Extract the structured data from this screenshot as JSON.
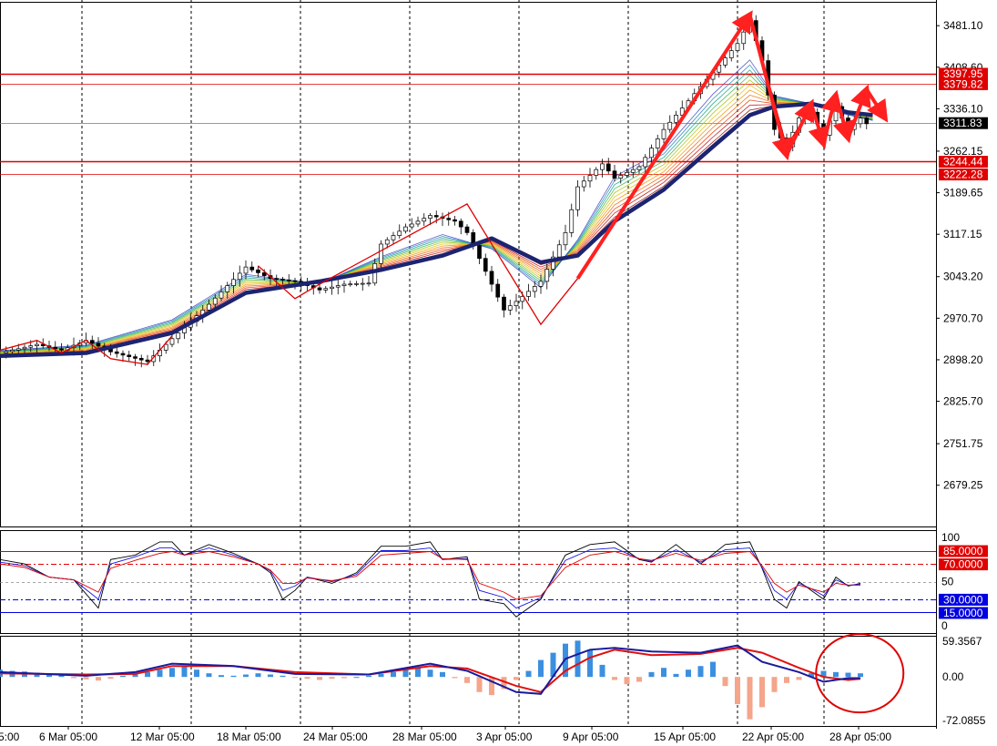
{
  "chart_data": {
    "type": "line",
    "instrument_note": "",
    "x_ticks": [
      "6 Mar 05:00",
      "12 Mar 05:00",
      "18 Mar 05:00",
      "24 Mar 05:00",
      "28 Mar 05:00",
      "3 Apr 05:00",
      "9 Apr 05:00",
      "15 Apr 05:00",
      "22 Apr 05:00",
      "28 Apr 05:00"
    ],
    "x_cut_label": "5:00",
    "main": {
      "ylim": [
        2620,
        3510
      ],
      "y_ticks": [
        3481.1,
        3408.6,
        3336.1,
        3262.15,
        3189.65,
        3117.15,
        3043.2,
        2970.7,
        2898.2,
        2825.7,
        2751.75,
        2679.25
      ],
      "y_tick_labels": [
        "3481.10",
        "3408.60",
        "3336.10",
        "3262.15",
        "3189.65",
        "3117.15",
        "3043.20",
        "2970.70",
        "2898.20",
        "2825.70",
        "2751.75",
        "2679.25"
      ],
      "levels": [
        {
          "value": 3397.95,
          "label": "3397.95",
          "color": "#e00000"
        },
        {
          "value": 3379.82,
          "label": "3379.82",
          "color": "#e00000"
        },
        {
          "value": 3244.44,
          "label": "3244.44",
          "color": "#e00000"
        },
        {
          "value": 3222.28,
          "label": "3222.28",
          "color": "#e00000"
        }
      ],
      "current": {
        "value": 3311.83,
        "label": "3311.83"
      },
      "price_path": [
        [
          0,
          2910
        ],
        [
          3,
          2925
        ],
        [
          5,
          2915
        ],
        [
          7,
          2932
        ],
        [
          9,
          2912
        ],
        [
          12,
          2895
        ],
        [
          14,
          2935
        ],
        [
          17,
          2995
        ],
        [
          20,
          3060
        ],
        [
          22,
          3040
        ],
        [
          24,
          3035
        ],
        [
          26,
          3020
        ],
        [
          28,
          3030
        ],
        [
          30,
          3032
        ],
        [
          31,
          3100
        ],
        [
          33,
          3130
        ],
        [
          35,
          3150
        ],
        [
          37,
          3140
        ],
        [
          38,
          3120
        ],
        [
          41,
          2985
        ],
        [
          42,
          3000
        ],
        [
          44,
          3035
        ],
        [
          46,
          3120
        ],
        [
          47,
          3200
        ],
        [
          49,
          3240
        ],
        [
          50,
          3215
        ],
        [
          52,
          3235
        ],
        [
          54,
          3300
        ],
        [
          56,
          3350
        ],
        [
          58,
          3400
        ],
        [
          60,
          3450
        ],
        [
          61,
          3490
        ],
        [
          62,
          3420
        ],
        [
          63,
          3300
        ],
        [
          64,
          3270
        ],
        [
          65,
          3320
        ],
        [
          66,
          3330
        ],
        [
          67,
          3290
        ],
        [
          68,
          3340
        ],
        [
          69,
          3300
        ],
        [
          70,
          3320
        ],
        [
          71,
          3300
        ]
      ],
      "ma_slow": [
        [
          0,
          2905
        ],
        [
          7,
          2910
        ],
        [
          14,
          2945
        ],
        [
          20,
          3015
        ],
        [
          26,
          3035
        ],
        [
          31,
          3055
        ],
        [
          36,
          3080
        ],
        [
          40,
          3110
        ],
        [
          44,
          3068
        ],
        [
          47,
          3080
        ],
        [
          50,
          3140
        ],
        [
          54,
          3195
        ],
        [
          58,
          3270
        ],
        [
          61,
          3325
        ],
        [
          63,
          3340
        ],
        [
          66,
          3345
        ],
        [
          69,
          3330
        ],
        [
          71,
          3325
        ]
      ],
      "ma_fast": [
        [
          0,
          2915
        ],
        [
          7,
          2925
        ],
        [
          14,
          2970
        ],
        [
          20,
          3050
        ],
        [
          26,
          3030
        ],
        [
          31,
          3080
        ],
        [
          36,
          3120
        ],
        [
          40,
          3090
        ],
        [
          44,
          3020
        ],
        [
          47,
          3110
        ],
        [
          50,
          3225
        ],
        [
          54,
          3270
        ],
        [
          58,
          3370
        ],
        [
          61,
          3430
        ],
        [
          63,
          3360
        ],
        [
          66,
          3345
        ],
        [
          69,
          3325
        ],
        [
          71,
          3315
        ]
      ],
      "trend_lines": [
        [
          [
            0,
            2915
          ],
          [
            3,
            2932
          ],
          [
            5,
            2910
          ],
          [
            7,
            2932
          ],
          [
            9,
            2900
          ],
          [
            12,
            2890
          ],
          [
            14,
            2940
          ]
        ],
        [
          [
            21,
            3062
          ],
          [
            24,
            3005
          ],
          [
            26,
            3030
          ],
          [
            38,
            3170
          ],
          [
            44,
            2960
          ],
          [
            47,
            3040
          ]
        ],
        [
          [
            47,
            3040
          ],
          [
            61,
            3500
          ],
          [
            64,
            3270
          ],
          [
            66,
            3340
          ],
          [
            67,
            3270
          ],
          [
            68,
            3360
          ],
          [
            69,
            3285
          ]
        ]
      ],
      "arrows": [
        {
          "from": [
            47,
            3040
          ],
          "to": [
            61,
            3500
          ]
        },
        {
          "from": [
            61,
            3500
          ],
          "to": [
            64,
            3255
          ]
        },
        {
          "from": [
            64,
            3255
          ],
          "to": [
            66,
            3345
          ]
        },
        {
          "from": [
            66,
            3345
          ],
          "to": [
            67,
            3275
          ]
        },
        {
          "from": [
            67,
            3275
          ],
          "to": [
            68,
            3360
          ]
        },
        {
          "from": [
            68,
            3360
          ],
          "to": [
            69,
            3285
          ]
        },
        {
          "from": [
            69,
            3285
          ],
          "to": [
            70.5,
            3370
          ]
        },
        {
          "from": [
            70.5,
            3370
          ],
          "to": [
            72,
            3320
          ]
        }
      ]
    },
    "stoch": {
      "ylim": [
        0,
        100
      ],
      "y_ticks": [
        100,
        50,
        0
      ],
      "y_tick_labels": [
        "100",
        "50",
        "0"
      ],
      "levels": [
        {
          "value": 85,
          "label": "85.0000",
          "color": "#e00000",
          "label_bg": "#e00000"
        },
        {
          "value": 70,
          "label": "70.0000",
          "color": "#e00000",
          "label_bg": "#e00000"
        },
        {
          "value": 30,
          "label": "30.0000",
          "color": "#0000e0",
          "label_bg": "#0000e0"
        },
        {
          "value": 15,
          "label": "15.0000",
          "color": "#0000e0",
          "label_bg": "#0000e0"
        }
      ],
      "black": [
        [
          0,
          75
        ],
        [
          2,
          70
        ],
        [
          4,
          55
        ],
        [
          6,
          52
        ],
        [
          8,
          20
        ],
        [
          9,
          75
        ],
        [
          11,
          80
        ],
        [
          13,
          95
        ],
        [
          14,
          95
        ],
        [
          15,
          80
        ],
        [
          17,
          92
        ],
        [
          19,
          82
        ],
        [
          21,
          70
        ],
        [
          22,
          60
        ],
        [
          23,
          30
        ],
        [
          24,
          40
        ],
        [
          25,
          55
        ],
        [
          27,
          48
        ],
        [
          29,
          60
        ],
        [
          30,
          75
        ],
        [
          31,
          90
        ],
        [
          33,
          90
        ],
        [
          35,
          95
        ],
        [
          36,
          75
        ],
        [
          38,
          78
        ],
        [
          39,
          30
        ],
        [
          41,
          25
        ],
        [
          42,
          10
        ],
        [
          44,
          30
        ],
        [
          46,
          80
        ],
        [
          48,
          92
        ],
        [
          50,
          95
        ],
        [
          52,
          75
        ],
        [
          53,
          72
        ],
        [
          55,
          92
        ],
        [
          57,
          70
        ],
        [
          59,
          92
        ],
        [
          61,
          95
        ],
        [
          62,
          65
        ],
        [
          63,
          30
        ],
        [
          64,
          20
        ],
        [
          65,
          50
        ],
        [
          66,
          40
        ],
        [
          67,
          30
        ],
        [
          68,
          55
        ],
        [
          69,
          45
        ],
        [
          70,
          48
        ]
      ],
      "blue": [
        [
          0,
          72
        ],
        [
          2,
          68
        ],
        [
          4,
          55
        ],
        [
          6,
          52
        ],
        [
          8,
          30
        ],
        [
          9,
          70
        ],
        [
          11,
          78
        ],
        [
          13,
          88
        ],
        [
          14,
          88
        ],
        [
          15,
          80
        ],
        [
          17,
          88
        ],
        [
          19,
          80
        ],
        [
          21,
          70
        ],
        [
          22,
          62
        ],
        [
          23,
          40
        ],
        [
          24,
          45
        ],
        [
          25,
          55
        ],
        [
          27,
          50
        ],
        [
          29,
          58
        ],
        [
          30,
          72
        ],
        [
          31,
          85
        ],
        [
          33,
          85
        ],
        [
          35,
          88
        ],
        [
          36,
          75
        ],
        [
          38,
          76
        ],
        [
          39,
          40
        ],
        [
          41,
          32
        ],
        [
          42,
          20
        ],
        [
          44,
          32
        ],
        [
          46,
          74
        ],
        [
          48,
          86
        ],
        [
          50,
          88
        ],
        [
          52,
          76
        ],
        [
          53,
          73
        ],
        [
          55,
          86
        ],
        [
          57,
          72
        ],
        [
          59,
          86
        ],
        [
          61,
          88
        ],
        [
          62,
          66
        ],
        [
          63,
          40
        ],
        [
          64,
          30
        ],
        [
          65,
          48
        ],
        [
          66,
          42
        ],
        [
          67,
          34
        ],
        [
          68,
          52
        ],
        [
          69,
          46
        ],
        [
          70,
          47
        ]
      ],
      "red": [
        [
          0,
          70
        ],
        [
          2,
          66
        ],
        [
          4,
          55
        ],
        [
          6,
          52
        ],
        [
          8,
          38
        ],
        [
          9,
          65
        ],
        [
          11,
          74
        ],
        [
          13,
          82
        ],
        [
          14,
          84
        ],
        [
          15,
          80
        ],
        [
          17,
          84
        ],
        [
          19,
          78
        ],
        [
          21,
          70
        ],
        [
          22,
          63
        ],
        [
          23,
          48
        ],
        [
          24,
          48
        ],
        [
          25,
          54
        ],
        [
          27,
          51
        ],
        [
          29,
          56
        ],
        [
          30,
          68
        ],
        [
          31,
          80
        ],
        [
          33,
          82
        ],
        [
          35,
          84
        ],
        [
          36,
          76
        ],
        [
          38,
          75
        ],
        [
          39,
          48
        ],
        [
          41,
          38
        ],
        [
          42,
          30
        ],
        [
          44,
          34
        ],
        [
          46,
          66
        ],
        [
          48,
          80
        ],
        [
          50,
          84
        ],
        [
          52,
          76
        ],
        [
          53,
          74
        ],
        [
          55,
          82
        ],
        [
          57,
          74
        ],
        [
          59,
          82
        ],
        [
          61,
          84
        ],
        [
          62,
          68
        ],
        [
          63,
          48
        ],
        [
          64,
          38
        ],
        [
          65,
          46
        ],
        [
          66,
          42
        ],
        [
          67,
          38
        ],
        [
          68,
          48
        ],
        [
          69,
          46
        ],
        [
          70,
          46
        ]
      ]
    },
    "macd": {
      "ylim": [
        -75,
        62
      ],
      "y_ticks": [
        59.3567,
        0.0,
        -72.0855
      ],
      "y_tick_labels": [
        "59.3567",
        "0.00",
        "-72.0855"
      ],
      "histogram": [
        12,
        10,
        9,
        7,
        5,
        3,
        -2,
        -4,
        -6,
        -3,
        2,
        5,
        8,
        12,
        15,
        17,
        12,
        6,
        3,
        2,
        4,
        6,
        4,
        2,
        -1,
        -3,
        -5,
        -3,
        -2,
        0,
        2,
        5,
        8,
        12,
        15,
        12,
        8,
        -2,
        -10,
        -25,
        -30,
        -20,
        -5,
        10,
        28,
        40,
        55,
        60,
        45,
        20,
        -5,
        -12,
        -8,
        8,
        15,
        5,
        12,
        18,
        25,
        -15,
        -45,
        -70,
        -50,
        -25,
        -10,
        -5,
        6,
        10,
        8,
        7,
        6
      ],
      "line_fast": [
        [
          0,
          8
        ],
        [
          7,
          2
        ],
        [
          11,
          8
        ],
        [
          14,
          22
        ],
        [
          19,
          18
        ],
        [
          24,
          5
        ],
        [
          30,
          4
        ],
        [
          35,
          22
        ],
        [
          38,
          10
        ],
        [
          42,
          -25
        ],
        [
          44,
          -28
        ],
        [
          46,
          30
        ],
        [
          48,
          45
        ],
        [
          50,
          48
        ],
        [
          53,
          42
        ],
        [
          57,
          40
        ],
        [
          60,
          52
        ],
        [
          62,
          25
        ],
        [
          65,
          8
        ],
        [
          67,
          -8
        ],
        [
          69,
          -2
        ],
        [
          70,
          -2
        ]
      ],
      "line_slow": [
        [
          0,
          6
        ],
        [
          7,
          4
        ],
        [
          11,
          5
        ],
        [
          14,
          18
        ],
        [
          19,
          18
        ],
        [
          24,
          8
        ],
        [
          30,
          4
        ],
        [
          35,
          18
        ],
        [
          38,
          14
        ],
        [
          42,
          -15
        ],
        [
          44,
          -25
        ],
        [
          46,
          10
        ],
        [
          48,
          32
        ],
        [
          50,
          45
        ],
        [
          53,
          36
        ],
        [
          57,
          38
        ],
        [
          60,
          48
        ],
        [
          62,
          40
        ],
        [
          65,
          15
        ],
        [
          67,
          0
        ],
        [
          69,
          -5
        ],
        [
          70,
          -3
        ]
      ],
      "highlight_circle": {
        "center": [
          69.5,
          0
        ],
        "label": ""
      }
    }
  }
}
